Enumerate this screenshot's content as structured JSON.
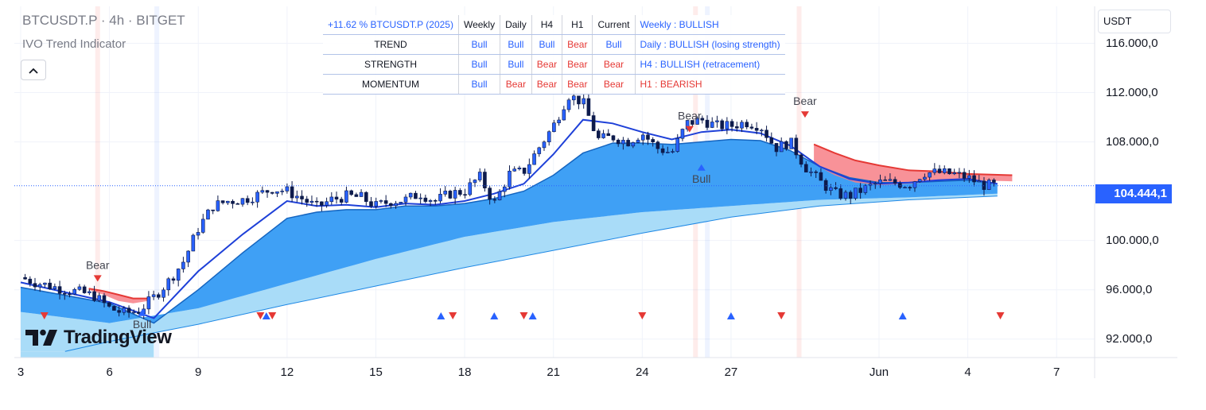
{
  "header": {
    "symbol_title": "BTCUSDT.P · 4h · BITGET",
    "indicator_name": "IVO Trend Indicator",
    "collapse_icon": "chevron-up-icon"
  },
  "currency": "USDT",
  "last_price": "104.444,1",
  "y_axis": {
    "ticks": [
      {
        "label": "116.000,0",
        "value": 116000
      },
      {
        "label": "112.000,0",
        "value": 112000
      },
      {
        "label": "108.000,0",
        "value": 108000
      },
      {
        "label": "100.000,0",
        "value": 100000
      },
      {
        "label": "96.000,0",
        "value": 96000
      },
      {
        "label": "92.000,0",
        "value": 92000
      }
    ]
  },
  "x_axis": {
    "ticks": [
      {
        "label": "3",
        "t": 0
      },
      {
        "label": "6",
        "t": 3
      },
      {
        "label": "9",
        "t": 6
      },
      {
        "label": "12",
        "t": 9
      },
      {
        "label": "15",
        "t": 12
      },
      {
        "label": "18",
        "t": 15
      },
      {
        "label": "21",
        "t": 18
      },
      {
        "label": "24",
        "t": 21
      },
      {
        "label": "27",
        "t": 24
      },
      {
        "label": "Jun",
        "t": 29
      },
      {
        "label": "4",
        "t": 32
      },
      {
        "label": "7",
        "t": 35
      }
    ]
  },
  "table": {
    "header": [
      "+11.62 % BTCUSDT.P (2025)",
      "Weekly",
      "Daily",
      "H4",
      "H1",
      "Current",
      "Weekly : BULLISH"
    ],
    "rows": [
      {
        "label": "TREND",
        "cells": [
          "Bull",
          "Bull",
          "Bull",
          "Bear",
          "Bull"
        ],
        "status": "Daily : BULLISH (losing strength)"
      },
      {
        "label": "STRENGTH",
        "cells": [
          "Bull",
          "Bull",
          "Bear",
          "Bear",
          "Bear"
        ],
        "status": "H4 : BULLISH (retracement)"
      },
      {
        "label": "MOMENTUM",
        "cells": [
          "Bull",
          "Bear",
          "Bear",
          "Bear",
          "Bear"
        ],
        "status": "H1 : BEARISH"
      }
    ]
  },
  "brand": {
    "logo_icon": "tradingview-logo-icon",
    "text": "TradingView"
  },
  "colors": {
    "bull": "#2962ff",
    "bear": "#e53935",
    "candle_up": "#2962ff",
    "candle_down": "#0d1b4c",
    "cloud_fast": "#3fa0f5",
    "cloud_slow": "#a9dcf8",
    "bear_cloud": "#f77f86"
  },
  "chart_data": {
    "type": "candlestick",
    "title": "BTCUSDT.P · 4h · BITGET",
    "ylim": [
      90500,
      119000
    ],
    "xlim": [
      0,
      36.5
    ],
    "close_price": [
      [
        0,
        97000
      ],
      [
        0.5,
        96600
      ],
      [
        1,
        96300
      ],
      [
        1.5,
        96000
      ],
      [
        2,
        95800
      ],
      [
        2.5,
        95500
      ],
      [
        3,
        94500
      ],
      [
        3.5,
        94100
      ],
      [
        4,
        94300
      ],
      [
        4.5,
        95400
      ],
      [
        5,
        96700
      ],
      [
        5.5,
        98300
      ],
      [
        6,
        101000
      ],
      [
        6.5,
        102800
      ],
      [
        7,
        103200
      ],
      [
        7.5,
        103300
      ],
      [
        8,
        103700
      ],
      [
        8.5,
        104200
      ],
      [
        9,
        104000
      ],
      [
        9.5,
        103400
      ],
      [
        10,
        102700
      ],
      [
        10.5,
        103300
      ],
      [
        11,
        103600
      ],
      [
        11.5,
        103500
      ],
      [
        12,
        102800
      ],
      [
        12.5,
        103200
      ],
      [
        13,
        103300
      ],
      [
        13.5,
        103800
      ],
      [
        14,
        103200
      ],
      [
        14.5,
        103800
      ],
      [
        15,
        104000
      ],
      [
        15.5,
        105200
      ],
      [
        16,
        103000
      ],
      [
        16.5,
        105400
      ],
      [
        17,
        105600
      ],
      [
        17.5,
        107500
      ],
      [
        18,
        109300
      ],
      [
        18.5,
        111800
      ],
      [
        19,
        111200
      ],
      [
        19.5,
        108200
      ],
      [
        20,
        108400
      ],
      [
        20.5,
        108000
      ],
      [
        21,
        108700
      ],
      [
        21.5,
        107500
      ],
      [
        22,
        107100
      ],
      [
        22.5,
        109500
      ],
      [
        23,
        109800
      ],
      [
        23.5,
        109300
      ],
      [
        24,
        109300
      ],
      [
        24.5,
        109600
      ],
      [
        25,
        109300
      ],
      [
        25.5,
        107500
      ],
      [
        26,
        108000
      ],
      [
        26.5,
        106000
      ],
      [
        27,
        104800
      ],
      [
        27.5,
        103800
      ],
      [
        28,
        103600
      ],
      [
        28.5,
        104200
      ],
      [
        29,
        104700
      ],
      [
        29.5,
        104700
      ],
      [
        30,
        104500
      ],
      [
        30.5,
        105500
      ],
      [
        31,
        105500
      ],
      [
        31.5,
        105400
      ],
      [
        32,
        105100
      ],
      [
        32.5,
        104500
      ],
      [
        33,
        104444
      ]
    ],
    "fast_band": [
      [
        0,
        96600
      ],
      [
        3,
        95000
      ],
      [
        4.5,
        93700
      ],
      [
        6,
        97500
      ],
      [
        7.5,
        100500
      ],
      [
        9,
        103200
      ],
      [
        10,
        102800
      ],
      [
        11,
        102900
      ],
      [
        12,
        102700
      ],
      [
        13,
        103000
      ],
      [
        14,
        102900
      ],
      [
        15,
        103200
      ],
      [
        16,
        103800
      ],
      [
        17,
        104600
      ],
      [
        18,
        107000
      ],
      [
        19,
        109800
      ],
      [
        20,
        109500
      ],
      [
        21,
        108800
      ],
      [
        22,
        108200
      ],
      [
        23,
        108800
      ],
      [
        24,
        109000
      ],
      [
        25,
        108700
      ],
      [
        26,
        107700
      ],
      [
        27,
        106000
      ],
      [
        28,
        105000
      ],
      [
        29,
        104600
      ],
      [
        30,
        104700
      ],
      [
        31,
        104900
      ],
      [
        32,
        105000
      ],
      [
        33,
        104600
      ]
    ],
    "mid_band": [
      [
        0,
        96200
      ],
      [
        3,
        94900
      ],
      [
        4.5,
        93300
      ],
      [
        6,
        96000
      ],
      [
        7.5,
        99000
      ],
      [
        9,
        101800
      ],
      [
        10,
        102300
      ],
      [
        11,
        102500
      ],
      [
        12,
        102500
      ],
      [
        13,
        102800
      ],
      [
        14,
        102800
      ],
      [
        15,
        103000
      ],
      [
        16,
        103400
      ],
      [
        17,
        104000
      ],
      [
        18,
        105300
      ],
      [
        19,
        107100
      ],
      [
        20,
        107900
      ],
      [
        21,
        107900
      ],
      [
        22,
        107800
      ],
      [
        23,
        108000
      ],
      [
        24,
        108200
      ],
      [
        25,
        108100
      ],
      [
        26,
        107300
      ],
      [
        27,
        106000
      ],
      [
        28,
        105100
      ],
      [
        29,
        104700
      ],
      [
        30,
        104700
      ],
      [
        31,
        104800
      ],
      [
        32,
        104900
      ],
      [
        33,
        104600
      ]
    ],
    "slow_band": [
      [
        0,
        94200
      ],
      [
        3,
        93300
      ],
      [
        6,
        94500
      ],
      [
        9,
        96500
      ],
      [
        12,
        98500
      ],
      [
        15,
        100300
      ],
      [
        18,
        101500
      ],
      [
        21,
        102300
      ],
      [
        24,
        102800
      ],
      [
        27,
        103300
      ],
      [
        30,
        103500
      ],
      [
        33,
        103800
      ]
    ],
    "longterm_band": [
      [
        1.5,
        91000
      ],
      [
        3,
        91800
      ],
      [
        6,
        93200
      ],
      [
        9,
        94800
      ],
      [
        12,
        96300
      ],
      [
        15,
        97800
      ],
      [
        18,
        99200
      ],
      [
        21,
        100600
      ],
      [
        24,
        101900
      ],
      [
        27,
        102800
      ],
      [
        30,
        103300
      ],
      [
        33,
        103600
      ]
    ],
    "bear_cloud_regions": [
      {
        "x": [
          2.3,
          2.8,
          3.3,
          3.8,
          4.3
        ],
        "top": [
          96100,
          95900,
          95600,
          95300,
          95300
        ],
        "bottom": [
          96000,
          95600,
          95100,
          94900,
          95100
        ]
      },
      {
        "x": [
          26.8,
          27.5,
          28.2,
          29,
          30,
          31,
          32,
          33.5
        ],
        "top": [
          107800,
          107100,
          106500,
          106100,
          105700,
          105600,
          105400,
          105300
        ],
        "bottom": [
          106200,
          105300,
          104700,
          104500,
          104600,
          104800,
          104900,
          104800
        ]
      }
    ],
    "signal_labels": [
      {
        "text": "Bear",
        "t": 2.6,
        "price": 97700,
        "direction": "down"
      },
      {
        "text": "Bull",
        "t": 4.1,
        "price": 92900,
        "direction": "up"
      },
      {
        "text": "Bear",
        "t": 22.6,
        "price": 109800,
        "direction": "down"
      },
      {
        "text": "Bull",
        "t": 23.0,
        "price": 104700,
        "direction": "up"
      },
      {
        "text": "Bear",
        "t": 26.5,
        "price": 111000,
        "direction": "down"
      }
    ],
    "bottom_markers": [
      {
        "t": 0.8,
        "direction": "down"
      },
      {
        "t": 8.3,
        "direction": "up"
      },
      {
        "t": 8.1,
        "direction": "down"
      },
      {
        "t": 8.5,
        "direction": "down"
      },
      {
        "t": 14.2,
        "direction": "up"
      },
      {
        "t": 14.6,
        "direction": "down"
      },
      {
        "t": 16.0,
        "direction": "up"
      },
      {
        "t": 17.0,
        "direction": "down"
      },
      {
        "t": 17.3,
        "direction": "up"
      },
      {
        "t": 21.0,
        "direction": "down"
      },
      {
        "t": 24.0,
        "direction": "up"
      },
      {
        "t": 25.7,
        "direction": "down"
      },
      {
        "t": 29.8,
        "direction": "up"
      },
      {
        "t": 33.1,
        "direction": "down"
      }
    ],
    "signal_columns": [
      {
        "t": 2.6,
        "color": "bear"
      },
      {
        "t": 4.6,
        "color": "bull"
      },
      {
        "t": 22.8,
        "color": "bear"
      },
      {
        "t": 23.2,
        "color": "bull"
      },
      {
        "t": 26.3,
        "color": "bear"
      }
    ],
    "grid": true,
    "legend": "top-left"
  }
}
